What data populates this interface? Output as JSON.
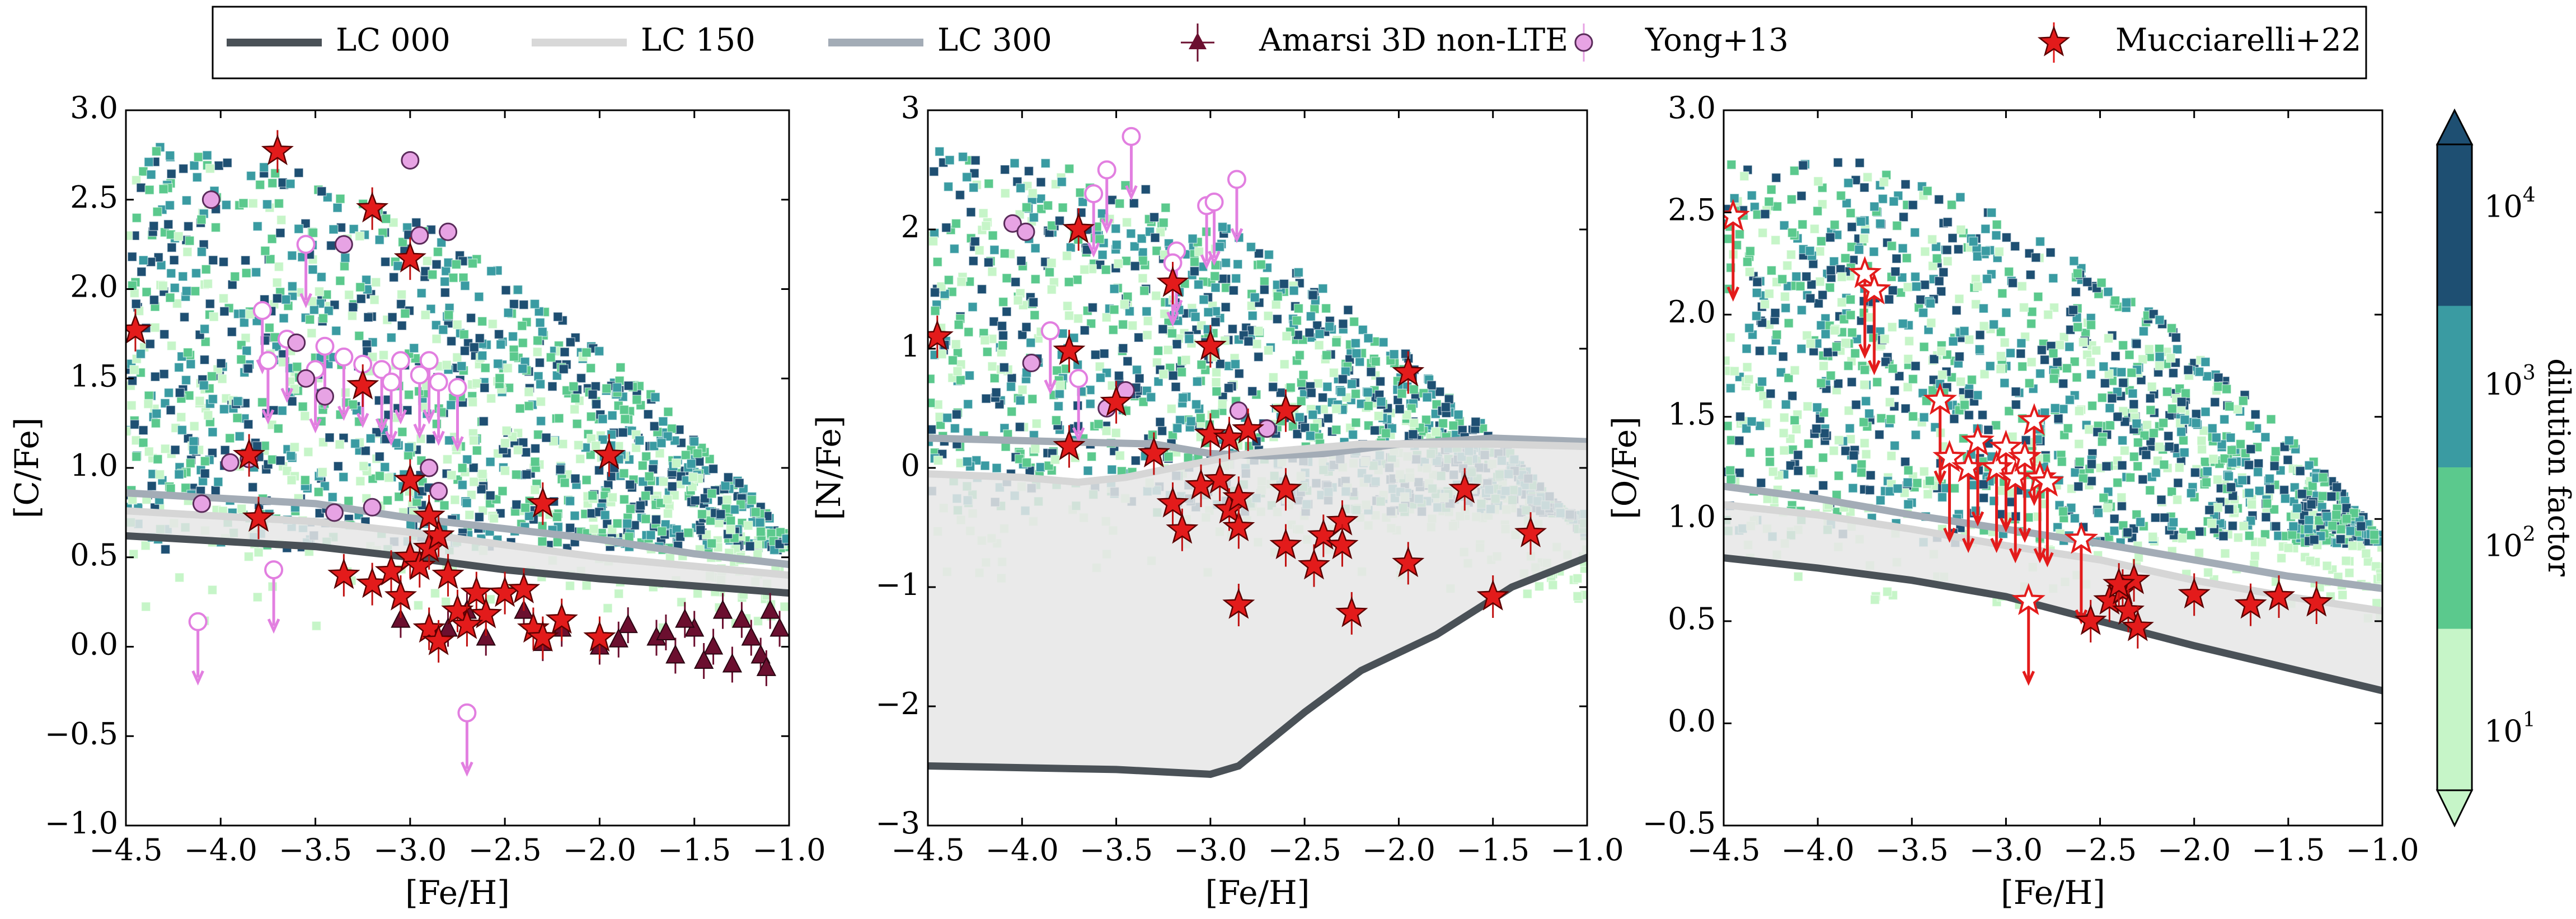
{
  "chart_data": [
    {
      "type": "scatter",
      "panel": "left",
      "xlabel": "[Fe/H]",
      "ylabel": "[C/Fe]",
      "xlim": [
        -4.5,
        -1.0
      ],
      "ylim": [
        -1.0,
        3.0
      ],
      "xticks": [
        -4.5,
        -4.0,
        -3.5,
        -3.0,
        -2.5,
        -2.0,
        -1.5,
        -1.0
      ],
      "xtick_labels": [
        "−4.5",
        "−4.0",
        "−3.5",
        "−3.0",
        "−2.5",
        "−2.0",
        "−1.5",
        "−1.0"
      ],
      "yticks": [
        -1.0,
        -0.5,
        0.0,
        0.5,
        1.0,
        1.5,
        2.0,
        2.5,
        3.0
      ],
      "ytick_labels": [
        "−1.0",
        "−0.5",
        "0.0",
        "0.5",
        "1.0",
        "1.5",
        "2.0",
        "2.5",
        "3.0"
      ],
      "lines": {
        "lc000": [
          [
            -4.5,
            0.62
          ],
          [
            -3.5,
            0.56
          ],
          [
            -3.0,
            0.5
          ],
          [
            -2.5,
            0.43
          ],
          [
            -2.0,
            0.38
          ],
          [
            -1.5,
            0.34
          ],
          [
            -1.0,
            0.3
          ]
        ],
        "lc150": [
          [
            -4.5,
            0.76
          ],
          [
            -3.5,
            0.7
          ],
          [
            -3.0,
            0.64
          ],
          [
            -2.5,
            0.57
          ],
          [
            -2.0,
            0.5
          ],
          [
            -1.5,
            0.45
          ],
          [
            -1.0,
            0.4
          ]
        ],
        "lc300": [
          [
            -4.5,
            0.86
          ],
          [
            -3.5,
            0.8
          ],
          [
            -3.0,
            0.72
          ],
          [
            -2.5,
            0.66
          ],
          [
            -2.0,
            0.6
          ],
          [
            -1.5,
            0.52
          ],
          [
            -1.0,
            0.46
          ]
        ]
      },
      "amarsi": [
        [
          -3.05,
          0.15
        ],
        [
          -2.8,
          0.1
        ],
        [
          -2.6,
          0.05
        ],
        [
          -2.4,
          0.2
        ],
        [
          -2.2,
          0.1
        ],
        [
          -2.0,
          0.0
        ],
        [
          -1.85,
          0.12
        ],
        [
          -1.7,
          0.05
        ],
        [
          -1.6,
          -0.05
        ],
        [
          -1.5,
          0.1
        ],
        [
          -1.4,
          0.0
        ],
        [
          -1.3,
          -0.1
        ],
        [
          -1.25,
          0.15
        ],
        [
          -1.2,
          0.05
        ],
        [
          -1.15,
          -0.05
        ],
        [
          -1.1,
          0.2
        ],
        [
          -1.05,
          0.1
        ],
        [
          -1.35,
          0.2
        ],
        [
          -1.55,
          0.15
        ],
        [
          -2.3,
          0.02
        ],
        [
          -2.7,
          0.2
        ],
        [
          -1.9,
          0.04
        ],
        [
          -1.45,
          -0.08
        ],
        [
          -1.65,
          0.08
        ],
        [
          -1.12,
          -0.12
        ]
      ],
      "yong": [
        [
          -4.05,
          2.5
        ],
        [
          -3.6,
          1.7
        ],
        [
          -3.35,
          2.25
        ],
        [
          -3.0,
          2.72
        ],
        [
          -2.95,
          2.3
        ],
        [
          -2.8,
          2.32
        ],
        [
          -3.55,
          1.5
        ],
        [
          -3.45,
          1.4
        ],
        [
          -3.85,
          1.05
        ],
        [
          -4.1,
          0.8
        ],
        [
          -3.95,
          1.03
        ],
        [
          -2.85,
          0.87
        ],
        [
          -3.2,
          0.78
        ],
        [
          -3.4,
          0.75
        ],
        [
          -2.9,
          1.0
        ]
      ],
      "yong_limits": [
        [
          -4.12,
          0.14
        ],
        [
          -3.72,
          0.43
        ],
        [
          -2.7,
          -0.37
        ],
        [
          -3.78,
          1.88
        ],
        [
          -3.55,
          2.25
        ],
        [
          -3.75,
          1.6
        ],
        [
          -3.65,
          1.72
        ],
        [
          -3.45,
          1.68
        ],
        [
          -3.35,
          1.62
        ],
        [
          -3.25,
          1.58
        ],
        [
          -3.15,
          1.55
        ],
        [
          -3.05,
          1.6
        ],
        [
          -2.95,
          1.52
        ],
        [
          -2.85,
          1.48
        ],
        [
          -2.75,
          1.45
        ],
        [
          -3.5,
          1.55
        ],
        [
          -3.1,
          1.48
        ],
        [
          -2.9,
          1.6
        ]
      ],
      "mucciarelli": [
        [
          -4.45,
          1.77
        ],
        [
          -3.7,
          2.77
        ],
        [
          -3.2,
          2.45
        ],
        [
          -3.0,
          2.17
        ],
        [
          -3.85,
          1.07
        ],
        [
          -3.25,
          1.46
        ],
        [
          -3.0,
          0.93
        ],
        [
          -2.3,
          0.8
        ],
        [
          -1.95,
          1.07
        ],
        [
          -3.8,
          0.72
        ],
        [
          -3.35,
          0.4
        ],
        [
          -3.2,
          0.35
        ],
        [
          -3.1,
          0.42
        ],
        [
          -3.0,
          0.5
        ],
        [
          -2.95,
          0.45
        ],
        [
          -2.9,
          0.55
        ],
        [
          -2.85,
          0.62
        ],
        [
          -2.8,
          0.4
        ],
        [
          -2.75,
          0.2
        ],
        [
          -2.65,
          0.3
        ],
        [
          -2.6,
          0.18
        ],
        [
          -2.5,
          0.3
        ],
        [
          -2.4,
          0.32
        ],
        [
          -2.35,
          0.1
        ],
        [
          -2.3,
          0.05
        ],
        [
          -2.9,
          0.1
        ],
        [
          -2.85,
          0.03
        ],
        [
          -3.05,
          0.28
        ],
        [
          -2.7,
          0.12
        ],
        [
          -2.2,
          0.15
        ],
        [
          -2.0,
          0.05
        ],
        [
          -2.9,
          0.73
        ]
      ]
    },
    {
      "type": "scatter",
      "panel": "middle",
      "xlabel": "[Fe/H]",
      "ylabel": "[N/Fe]",
      "xlim": [
        -4.5,
        -1.0
      ],
      "ylim": [
        -3.0,
        3.0
      ],
      "xticks": [
        -4.5,
        -4.0,
        -3.5,
        -3.0,
        -2.5,
        -2.0,
        -1.5,
        -1.0
      ],
      "xtick_labels": [
        "−4.5",
        "−4.0",
        "−3.5",
        "−3.0",
        "−2.5",
        "−2.0",
        "−1.5",
        "−1.0"
      ],
      "yticks": [
        -3,
        -2,
        -1,
        0,
        1,
        2,
        3
      ],
      "ytick_labels": [
        "−3",
        "−2",
        "−1",
        "0",
        "1",
        "2",
        "3"
      ],
      "lines": {
        "lc000": [
          [
            -4.5,
            -2.5
          ],
          [
            -3.5,
            -2.53
          ],
          [
            -3.0,
            -2.57
          ],
          [
            -2.85,
            -2.5
          ],
          [
            -2.5,
            -2.05
          ],
          [
            -2.2,
            -1.7
          ],
          [
            -1.8,
            -1.4
          ],
          [
            -1.4,
            -1.0
          ],
          [
            -1.0,
            -0.75
          ]
        ],
        "lc150": [
          [
            -4.5,
            -0.05
          ],
          [
            -4.0,
            -0.08
          ],
          [
            -3.7,
            -0.12
          ],
          [
            -3.45,
            -0.08
          ],
          [
            -3.2,
            0.0
          ],
          [
            -2.8,
            0.12
          ],
          [
            -2.2,
            0.2
          ],
          [
            -1.5,
            0.2
          ],
          [
            -1.0,
            0.18
          ]
        ],
        "lc300": [
          [
            -4.5,
            0.25
          ],
          [
            -3.8,
            0.22
          ],
          [
            -3.3,
            0.2
          ],
          [
            -3.0,
            0.12
          ],
          [
            -2.7,
            0.1
          ],
          [
            -2.4,
            0.12
          ],
          [
            -2.0,
            0.2
          ],
          [
            -1.5,
            0.25
          ],
          [
            -1.0,
            0.22
          ]
        ]
      },
      "yong": [
        [
          -4.05,
          2.05
        ],
        [
          -3.98,
          1.98
        ],
        [
          -3.95,
          0.88
        ],
        [
          -3.55,
          0.5
        ],
        [
          -3.45,
          0.65
        ],
        [
          -2.85,
          0.48
        ],
        [
          -2.7,
          0.33
        ]
      ],
      "yong_limits": [
        [
          -3.42,
          2.78
        ],
        [
          -3.55,
          2.5
        ],
        [
          -3.62,
          2.3
        ],
        [
          -3.18,
          1.82
        ],
        [
          -3.2,
          1.72
        ],
        [
          -3.02,
          2.2
        ],
        [
          -2.98,
          2.23
        ],
        [
          -2.86,
          2.42
        ],
        [
          -3.85,
          1.15
        ],
        [
          -3.7,
          0.75
        ]
      ],
      "mucciarelli": [
        [
          -4.45,
          1.1
        ],
        [
          -3.7,
          2.0
        ],
        [
          -3.75,
          0.98
        ],
        [
          -3.2,
          1.55
        ],
        [
          -3.0,
          1.02
        ],
        [
          -1.95,
          0.8
        ],
        [
          -3.75,
          0.18
        ],
        [
          -3.5,
          0.55
        ],
        [
          -3.3,
          0.12
        ],
        [
          -3.0,
          0.28
        ],
        [
          -2.9,
          0.25
        ],
        [
          -2.8,
          0.32
        ],
        [
          -2.6,
          0.48
        ],
        [
          -3.2,
          -0.3
        ],
        [
          -3.15,
          -0.52
        ],
        [
          -3.05,
          -0.15
        ],
        [
          -2.95,
          -0.1
        ],
        [
          -2.9,
          -0.35
        ],
        [
          -2.85,
          -0.5
        ],
        [
          -2.85,
          -0.25
        ],
        [
          -2.6,
          -0.18
        ],
        [
          -2.6,
          -0.65
        ],
        [
          -2.45,
          -0.82
        ],
        [
          -2.4,
          -0.57
        ],
        [
          -2.3,
          -0.45
        ],
        [
          -2.3,
          -0.65
        ],
        [
          -2.25,
          -1.22
        ],
        [
          -2.85,
          -1.15
        ],
        [
          -1.95,
          -0.8
        ],
        [
          -1.65,
          -0.18
        ],
        [
          -1.3,
          -0.55
        ],
        [
          -1.5,
          -1.08
        ]
      ]
    },
    {
      "type": "scatter",
      "panel": "right",
      "xlabel": "[Fe/H]",
      "ylabel": "[O/Fe]",
      "xlim": [
        -4.5,
        -1.0
      ],
      "ylim": [
        -0.5,
        3.0
      ],
      "xticks": [
        -4.5,
        -4.0,
        -3.5,
        -3.0,
        -2.5,
        -2.0,
        -1.5,
        -1.0
      ],
      "xtick_labels": [
        "−4.5",
        "−4.0",
        "−3.5",
        "−3.0",
        "−2.5",
        "−2.0",
        "−1.5",
        "−1.0"
      ],
      "yticks": [
        -0.5,
        0.0,
        0.5,
        1.0,
        1.5,
        2.0,
        2.5,
        3.0
      ],
      "ytick_labels": [
        "−0.5",
        "0.0",
        "0.5",
        "1.0",
        "1.5",
        "2.0",
        "2.5",
        "3.0"
      ],
      "lines": {
        "lc000": [
          [
            -4.5,
            0.81
          ],
          [
            -4.0,
            0.76
          ],
          [
            -3.5,
            0.7
          ],
          [
            -3.0,
            0.62
          ],
          [
            -2.5,
            0.5
          ],
          [
            -2.0,
            0.38
          ],
          [
            -1.5,
            0.27
          ],
          [
            -1.0,
            0.16
          ]
        ],
        "lc150": [
          [
            -4.5,
            1.07
          ],
          [
            -4.0,
            1.02
          ],
          [
            -3.5,
            0.95
          ],
          [
            -3.0,
            0.87
          ],
          [
            -2.5,
            0.8
          ],
          [
            -2.0,
            0.7
          ],
          [
            -1.5,
            0.62
          ],
          [
            -1.0,
            0.55
          ]
        ],
        "lc300": [
          [
            -4.5,
            1.16
          ],
          [
            -4.0,
            1.1
          ],
          [
            -3.5,
            1.02
          ],
          [
            -3.0,
            0.95
          ],
          [
            -2.5,
            0.88
          ],
          [
            -2.0,
            0.8
          ],
          [
            -1.5,
            0.72
          ],
          [
            -1.0,
            0.66
          ]
        ]
      },
      "mucciarelli_upper": [
        [
          -4.45,
          2.48
        ],
        [
          -3.75,
          2.2
        ],
        [
          -3.7,
          2.12
        ],
        [
          -3.35,
          1.58
        ],
        [
          -3.3,
          1.3
        ],
        [
          -3.2,
          1.25
        ],
        [
          -3.15,
          1.38
        ],
        [
          -3.05,
          1.25
        ],
        [
          -3.0,
          1.35
        ],
        [
          -2.95,
          1.2
        ],
        [
          -2.9,
          1.3
        ],
        [
          -2.85,
          1.48
        ],
        [
          -2.82,
          1.2
        ],
        [
          -2.78,
          1.18
        ],
        [
          -2.6,
          0.9
        ],
        [
          -2.88,
          0.6
        ]
      ],
      "mucciarelli": [
        [
          -2.55,
          0.5
        ],
        [
          -2.45,
          0.6
        ],
        [
          -2.38,
          0.65
        ],
        [
          -2.32,
          0.7
        ],
        [
          -2.35,
          0.55
        ],
        [
          -2.3,
          0.47
        ],
        [
          -2.0,
          0.63
        ],
        [
          -1.7,
          0.58
        ],
        [
          -1.55,
          0.62
        ],
        [
          -1.35,
          0.59
        ],
        [
          -2.4,
          0.68
        ]
      ]
    }
  ],
  "legend": [
    {
      "label": "LC 000",
      "kind": "line",
      "color": "#4a5157"
    },
    {
      "label": "LC 150",
      "kind": "line",
      "color": "#d8d8d8"
    },
    {
      "label": "LC 300",
      "kind": "line",
      "color": "#a3acb6"
    },
    {
      "label": "Amarsi 3D non-LTE",
      "kind": "triangle",
      "color": "#6b0f2f"
    },
    {
      "label": "Yong+13",
      "kind": "circle",
      "color": "#e7a3e4"
    },
    {
      "label": "Mucciarelli+22",
      "kind": "star",
      "color": "#e31b1b"
    }
  ],
  "colorbar": {
    "label": "dilution factor",
    "tick_labels": [
      "10^1",
      "10^2",
      "10^3",
      "10^4"
    ],
    "colors": [
      "#c6f5c8",
      "#5bc98d",
      "#3a9ba2",
      "#1e4f72"
    ]
  }
}
